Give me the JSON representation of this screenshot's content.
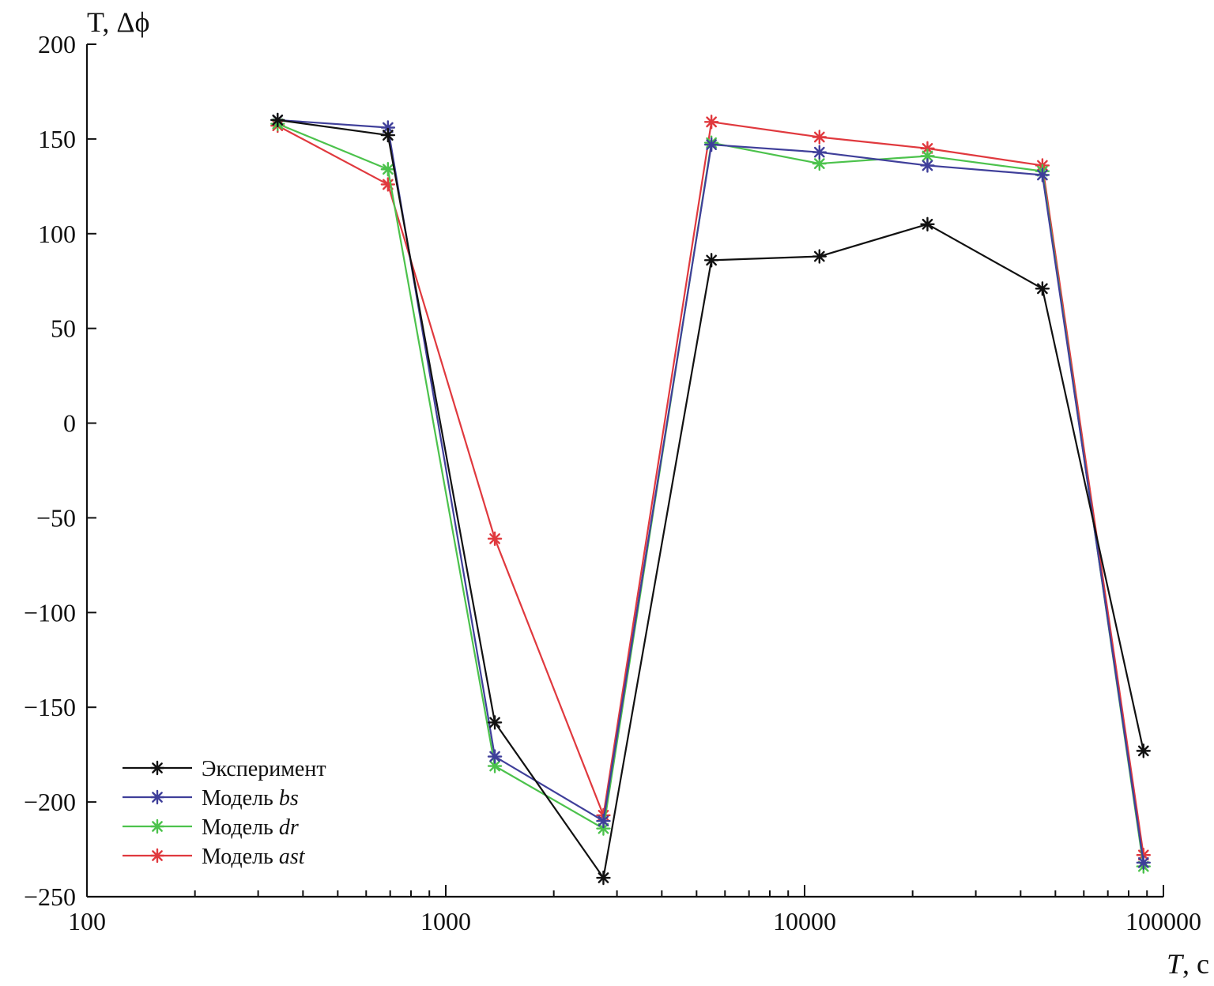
{
  "chart_data": {
    "type": "line",
    "title": "",
    "ylabel": "T, Δϕ",
    "xlabel_italic": "T",
    "xlabel_unit": ", с",
    "xscale": "log",
    "xlim": [
      100,
      100000
    ],
    "ylim": [
      -250,
      200
    ],
    "x_ticks": [
      100,
      1000,
      10000,
      100000
    ],
    "x_tick_labels": [
      "100",
      "1000",
      "10000",
      "100000"
    ],
    "y_ticks": [
      200,
      150,
      100,
      50,
      0,
      -50,
      -100,
      -150,
      -200,
      -250
    ],
    "y_tick_labels": [
      "200",
      "150",
      "100",
      "50",
      "0",
      "−50",
      "−100",
      "−150",
      "−200",
      "−250"
    ],
    "grid": false,
    "legend_position": "bottom-left",
    "marker": "asterisk",
    "x": [
      340,
      690,
      1370,
      2750,
      5500,
      11000,
      22000,
      46000,
      88000
    ],
    "series": [
      {
        "name": "Эксперимент",
        "name_prefix": "Эксперимент",
        "name_italic": "",
        "color": "#111111",
        "values": [
          160,
          152,
          -158,
          -240,
          86,
          88,
          105,
          71,
          -173
        ]
      },
      {
        "name": "Модель bs",
        "name_prefix": "Модель ",
        "name_italic": "bs",
        "color": "#3f3f9a",
        "values": [
          160,
          156,
          -176,
          -210,
          147,
          143,
          136,
          131,
          -232
        ]
      },
      {
        "name": "Модель dr",
        "name_prefix": "Модель ",
        "name_italic": "dr",
        "color": "#4cc24c",
        "values": [
          158,
          134,
          -181,
          -214,
          148,
          137,
          141,
          133,
          -234
        ]
      },
      {
        "name": "Модель ast",
        "name_prefix": "Модель ",
        "name_italic": "ast",
        "color": "#e0393e",
        "values": [
          157,
          126,
          -61,
          -207,
          159,
          151,
          145,
          136,
          -228
        ]
      }
    ]
  }
}
